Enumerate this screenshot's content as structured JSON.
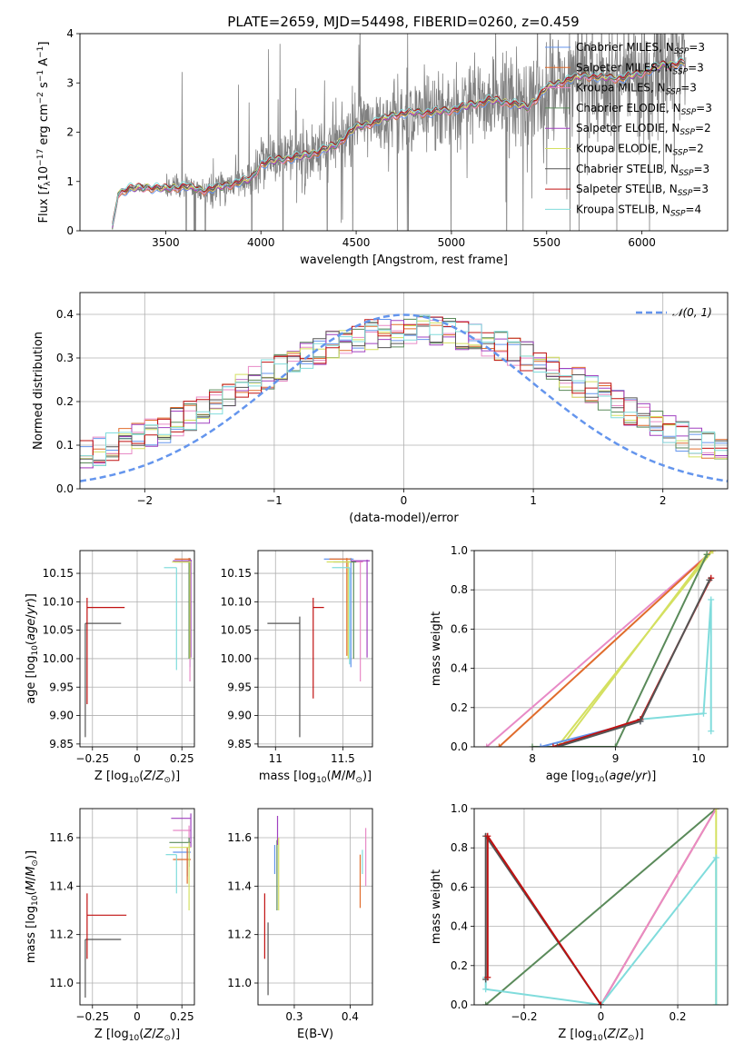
{
  "figure": {
    "title": "PLATE=2659, MJD=54498, FIBERID=0260, z=0.459"
  },
  "series_styles": [
    {
      "label": "Chabrier MILES, N$_{SSP}$=3",
      "label_main": "Chabrier MILES, N",
      "label_sub": "SSP",
      "label_tail": "=3",
      "color": "#6495ed"
    },
    {
      "label": "Salpeter MILES, N$_{SSP}$=3",
      "label_main": "Salpeter MILES, N",
      "label_sub": "SSP",
      "label_tail": "=3",
      "color": "#e06c2c"
    },
    {
      "label": "Kroupa MILES, N$_{SSP}$=3",
      "label_main": "Kroupa MILES, N",
      "label_sub": "SSP",
      "label_tail": "=3",
      "color": "#e88ac6"
    },
    {
      "label": "Chabrier ELODIE, N$_{SSP}$=3",
      "label_main": "Chabrier ELODIE, N",
      "label_sub": "SSP",
      "label_tail": "=3",
      "color": "#5a8a5a"
    },
    {
      "label": "Salpeter ELODIE, N$_{SSP}$=2",
      "label_main": "Salpeter ELODIE, N",
      "label_sub": "SSP",
      "label_tail": "=2",
      "color": "#a040c0"
    },
    {
      "label": "Kroupa ELODIE, N$_{SSP}$=2",
      "label_main": "Kroupa ELODIE, N",
      "label_sub": "SSP",
      "label_tail": "=2",
      "color": "#d4e060"
    },
    {
      "label": "Chabrier STELIB, N$_{SSP}$=3",
      "label_main": "Chabrier STELIB, N",
      "label_sub": "SSP",
      "label_tail": "=3",
      "color": "#555555"
    },
    {
      "label": "Salpeter STELIB, N$_{SSP}$=3",
      "label_main": "Salpeter STELIB, N",
      "label_sub": "SSP",
      "label_tail": "=3",
      "color": "#c01010"
    },
    {
      "label": "Kroupa STELIB, N$_{SSP}$=4",
      "label_main": "Kroupa STELIB, N",
      "label_sub": "SSP",
      "label_tail": "=4",
      "color": "#80dcdc"
    }
  ],
  "chart_data": [
    {
      "id": "spectrum",
      "type": "line",
      "title": "PLATE=2659, MJD=54498, FIBERID=0260, z=0.459",
      "xlabel": "wavelength [Angstrom, rest frame]",
      "ylabel": "Flux [f_λ10^-17 erg cm^-2 s^-1 A^-1]",
      "xlim": [
        3050,
        6450
      ],
      "ylim": [
        0,
        4
      ],
      "xticks": [
        3500,
        4000,
        4500,
        5000,
        5500,
        6000
      ],
      "yticks": [
        0,
        1,
        2,
        3,
        4
      ],
      "grid": false,
      "legend": "right",
      "data_color": "#808080",
      "data_start": 3220,
      "data_end": 6230,
      "model_anchors": {
        "x": [
          3220,
          3250,
          3300,
          3400,
          3500,
          3600,
          3700,
          3800,
          3900,
          3950,
          4000,
          4100,
          4200,
          4300,
          4400,
          4500,
          4600,
          4700,
          4800,
          4900,
          5000,
          5100,
          5200,
          5300,
          5400,
          5500,
          5600,
          5700,
          5800,
          5900,
          6000,
          6100,
          6200
        ],
        "y": [
          0.05,
          0.75,
          0.85,
          0.88,
          0.85,
          0.9,
          0.82,
          0.9,
          1.0,
          1.05,
          1.35,
          1.45,
          1.5,
          1.6,
          1.75,
          2.1,
          2.2,
          2.35,
          2.4,
          2.4,
          2.45,
          2.55,
          2.65,
          2.6,
          2.5,
          2.9,
          3.05,
          3.15,
          3.1,
          3.1,
          3.2,
          3.35,
          3.4
        ]
      }
    },
    {
      "id": "residuals",
      "type": "histogram",
      "xlabel": "(data-model)/error",
      "ylabel": "Normed distribution",
      "xlim": [
        -2.5,
        2.5
      ],
      "ylim": [
        0,
        0.45
      ],
      "xticks": [
        -2,
        -1,
        0,
        1,
        2
      ],
      "yticks": [
        0,
        0.1,
        0.2,
        0.3,
        0.4
      ],
      "grid": true,
      "legend": "top-right",
      "gaussian_label": "𝒩(0, 1)",
      "gaussian_color": "#6495ed",
      "bins": 50
    },
    {
      "id": "age_vs_Z",
      "type": "errorbar",
      "xlabel": "Z [log10(Z/Z⊙)]",
      "ylabel": "age [log10(age/yr)]",
      "xlim": [
        -0.32,
        0.32
      ],
      "ylim": [
        9.845,
        10.19
      ],
      "xticks": [
        -0.25,
        0.0,
        0.25
      ],
      "yticks": [
        9.85,
        9.9,
        9.95,
        10.0,
        10.05,
        10.1,
        10.15
      ],
      "grid": true,
      "points": [
        {
          "s": 0,
          "x": 0.295,
          "y": 10.175,
          "xl": 0.01,
          "xr": 0.005,
          "yl": 0.19,
          "yh": 0.002
        },
        {
          "s": 1,
          "x": 0.29,
          "y": 10.175,
          "xl": 0.08,
          "xr": 0.01,
          "yl": 0.17,
          "yh": 0.002
        },
        {
          "s": 2,
          "x": 0.295,
          "y": 10.17,
          "xl": 0.06,
          "xr": 0.005,
          "yl": 0.21,
          "yh": 0.002
        },
        {
          "s": 3,
          "x": 0.29,
          "y": 10.17,
          "xl": 0.08,
          "xr": 0.01,
          "yl": 0.17,
          "yh": 0.002
        },
        {
          "s": 4,
          "x": 0.3,
          "y": 10.172,
          "xl": 0.1,
          "xr": 0.005,
          "yl": 0.17,
          "yh": 0.002
        },
        {
          "s": 5,
          "x": 0.295,
          "y": 10.17,
          "xl": 0.1,
          "xr": 0.005,
          "yl": 0.17,
          "yh": 0.002
        },
        {
          "s": 6,
          "x": -0.29,
          "y": 10.062,
          "xl": 0.0,
          "xr": 0.2,
          "yl": 0.2,
          "yh": 0.0
        },
        {
          "s": 7,
          "x": -0.28,
          "y": 10.09,
          "xl": 0.0,
          "xr": 0.21,
          "yl": 0.17,
          "yh": 0.017
        },
        {
          "s": 8,
          "x": 0.22,
          "y": 10.16,
          "xl": 0.07,
          "xr": 0.0,
          "yl": 0.18,
          "yh": 0.0
        }
      ]
    },
    {
      "id": "age_vs_mass",
      "type": "errorbar",
      "xlabel": "mass [log10(M/M⊙)]",
      "ylabel": "",
      "xlim": [
        10.87,
        11.72
      ],
      "ylim": [
        9.845,
        10.19
      ],
      "xticks": [
        11.0,
        11.5
      ],
      "yticks": [
        9.85,
        9.9,
        9.95,
        10.0,
        10.05,
        10.1,
        10.15
      ],
      "grid": true,
      "points": [
        {
          "s": 0,
          "x": 11.56,
          "y": 10.175,
          "xl": 0.2,
          "xr": 0.02,
          "yl": 0.19,
          "yh": 0.002
        },
        {
          "s": 1,
          "x": 11.53,
          "y": 10.175,
          "xl": 0.13,
          "xr": 0.03,
          "yl": 0.17,
          "yh": 0.002
        },
        {
          "s": 2,
          "x": 11.63,
          "y": 10.17,
          "xl": 0.13,
          "xr": 0.02,
          "yl": 0.21,
          "yh": 0.002
        },
        {
          "s": 3,
          "x": 11.58,
          "y": 10.17,
          "xl": 0.15,
          "xr": 0.02,
          "yl": 0.17,
          "yh": 0.002
        },
        {
          "s": 4,
          "x": 11.68,
          "y": 10.172,
          "xl": 0.12,
          "xr": 0.02,
          "yl": 0.17,
          "yh": 0.002
        },
        {
          "s": 5,
          "x": 11.54,
          "y": 10.17,
          "xl": 0.16,
          "xr": 0.02,
          "yl": 0.17,
          "yh": 0.002
        },
        {
          "s": 6,
          "x": 11.18,
          "y": 10.062,
          "xl": 0.24,
          "xr": 0.0,
          "yl": 0.2,
          "yh": 0.012
        },
        {
          "s": 7,
          "x": 11.28,
          "y": 10.09,
          "xl": 0.0,
          "xr": 0.08,
          "yl": 0.16,
          "yh": 0.017
        },
        {
          "s": 8,
          "x": 11.55,
          "y": 10.16,
          "xl": 0.13,
          "xr": 0.0,
          "yl": 0.17,
          "yh": 0.0
        }
      ]
    },
    {
      "id": "weight_vs_age",
      "type": "line",
      "xlabel": "age [log10(age/yr)]",
      "ylabel": "mass weight",
      "xlim": [
        7.3,
        10.35
      ],
      "ylim": [
        0,
        1.0
      ],
      "xticks": [
        8,
        9,
        10
      ],
      "yticks": [
        0,
        0.2,
        0.4,
        0.6,
        0.8,
        1.0
      ],
      "grid": true,
      "series": [
        {
          "s": 2,
          "x": [
            7.45,
            10.17
          ],
          "y": [
            0.0,
            1.0
          ]
        },
        {
          "s": 1,
          "x": [
            7.6,
            10.17
          ],
          "y": [
            0.0,
            1.0
          ]
        },
        {
          "s": 5,
          "x": [
            8.3,
            10.17
          ],
          "y": [
            0.0,
            1.0
          ]
        },
        {
          "s": 5,
          "x": [
            8.35,
            10.1
          ],
          "y": [
            0.0,
            0.98
          ]
        },
        {
          "s": 3,
          "x": [
            9.0,
            10.1
          ],
          "y": [
            0.0,
            0.98
          ]
        },
        {
          "s": 3,
          "x": [
            8.0,
            9.0
          ],
          "y": [
            0.0,
            0.0
          ]
        },
        {
          "s": 0,
          "x": [
            8.1,
            9.3
          ],
          "y": [
            0.0,
            0.13
          ]
        },
        {
          "s": 8,
          "x": [
            9.3,
            10.06,
            10.15,
            10.15
          ],
          "y": [
            0.14,
            0.17,
            0.75,
            0.08
          ]
        },
        {
          "s": 7,
          "x": [
            8.25,
            9.3,
            10.15
          ],
          "y": [
            0.0,
            0.14,
            0.86
          ]
        },
        {
          "s": 6,
          "x": [
            8.3,
            9.3,
            10.13
          ],
          "y": [
            0.0,
            0.13,
            0.85
          ]
        }
      ]
    },
    {
      "id": "mass_vs_Z",
      "type": "errorbar",
      "xlabel": "Z [log10(Z/Z⊙)]",
      "ylabel": "mass [log10(M/M⊙)]",
      "xlim": [
        -0.32,
        0.32
      ],
      "ylim": [
        10.91,
        11.72
      ],
      "xticks": [
        -0.25,
        0.0,
        0.25
      ],
      "yticks": [
        11.0,
        11.2,
        11.4,
        11.6
      ],
      "grid": true,
      "points": [
        {
          "s": 0,
          "x": 0.28,
          "y": 11.54,
          "xl": 0.08,
          "xr": 0.02,
          "yl": 0.1,
          "yh": 0.02
        },
        {
          "s": 1,
          "x": 0.28,
          "y": 11.51,
          "xl": 0.08,
          "xr": 0.02,
          "yl": 0.1,
          "yh": 0.05
        },
        {
          "s": 2,
          "x": 0.29,
          "y": 11.63,
          "xl": 0.09,
          "xr": 0.01,
          "yl": 0.1,
          "yh": 0.02
        },
        {
          "s": 3,
          "x": 0.29,
          "y": 11.58,
          "xl": 0.11,
          "xr": 0.01,
          "yl": 0.1,
          "yh": 0.02
        },
        {
          "s": 4,
          "x": 0.3,
          "y": 11.68,
          "xl": 0.11,
          "xr": 0.0,
          "yl": 0.12,
          "yh": 0.02
        },
        {
          "s": 5,
          "x": 0.29,
          "y": 11.56,
          "xl": 0.11,
          "xr": 0.01,
          "yl": 0.26,
          "yh": 0.02
        },
        {
          "s": 6,
          "x": -0.29,
          "y": 11.18,
          "xl": 0.0,
          "xr": 0.2,
          "yl": 0.24,
          "yh": 0.0
        },
        {
          "s": 7,
          "x": -0.28,
          "y": 11.28,
          "xl": 0.0,
          "xr": 0.22,
          "yl": 0.18,
          "yh": 0.09
        },
        {
          "s": 8,
          "x": 0.22,
          "y": 11.53,
          "xl": 0.06,
          "xr": 0.0,
          "yl": 0.16,
          "yh": 0.0
        }
      ]
    },
    {
      "id": "mass_vs_EBV",
      "type": "errorbar",
      "xlabel": "E(B-V)",
      "ylabel": "",
      "xlim": [
        0.235,
        0.44
      ],
      "ylim": [
        10.91,
        11.72
      ],
      "xticks": [
        0.3,
        0.4
      ],
      "yticks": [
        11.0,
        11.2,
        11.4,
        11.6
      ],
      "grid": true,
      "points": [
        {
          "s": 0,
          "x": 0.265,
          "y": 11.55,
          "xl": 0.0,
          "xr": 0.0,
          "yl": 0.1,
          "yh": 0.02
        },
        {
          "s": 1,
          "x": 0.418,
          "y": 11.51,
          "xl": 0.0,
          "xr": 0.0,
          "yl": 0.2,
          "yh": 0.02
        },
        {
          "s": 2,
          "x": 0.428,
          "y": 11.64,
          "xl": 0.0,
          "xr": 0.0,
          "yl": 0.24,
          "yh": 0.0
        },
        {
          "s": 3,
          "x": 0.269,
          "y": 11.57,
          "xl": 0.0,
          "xr": 0.0,
          "yl": 0.27,
          "yh": 0.02
        },
        {
          "s": 4,
          "x": 0.27,
          "y": 11.69,
          "xl": 0.0,
          "xr": 0.0,
          "yl": 0.12,
          "yh": 0.0
        },
        {
          "s": 5,
          "x": 0.272,
          "y": 11.6,
          "xl": 0.0,
          "xr": 0.0,
          "yl": 0.3,
          "yh": 0.0
        },
        {
          "s": 6,
          "x": 0.253,
          "y": 11.25,
          "xl": 0.0,
          "xr": 0.0,
          "yl": 0.3,
          "yh": 0.0
        },
        {
          "s": 7,
          "x": 0.247,
          "y": 11.37,
          "xl": 0.0,
          "xr": 0.0,
          "yl": 0.27,
          "yh": 0.0
        },
        {
          "s": 8,
          "x": 0.422,
          "y": 11.55,
          "xl": 0.0,
          "xr": 0.0,
          "yl": 0.1,
          "yh": 0.0
        }
      ]
    },
    {
      "id": "weight_vs_Z",
      "type": "line",
      "xlabel": "Z [log10(Z/Z⊙)]",
      "ylabel": "mass weight",
      "xlim": [
        -0.33,
        0.33
      ],
      "ylim": [
        0,
        1.0
      ],
      "xticks": [
        -0.2,
        0.0,
        0.2
      ],
      "yticks": [
        0,
        0.2,
        0.4,
        0.6,
        0.8,
        1.0
      ],
      "grid": true,
      "series": [
        {
          "s": 3,
          "x": [
            -0.3,
            0.3
          ],
          "y": [
            0.0,
            1.0
          ]
        },
        {
          "s": 1,
          "x": [
            0.0,
            0.3
          ],
          "y": [
            0.0,
            1.0
          ]
        },
        {
          "s": 2,
          "x": [
            0.0,
            0.3
          ],
          "y": [
            0.0,
            1.0
          ]
        },
        {
          "s": 5,
          "x": [
            0.3,
            0.3
          ],
          "y": [
            0.0,
            1.0
          ]
        },
        {
          "s": 8,
          "x": [
            -0.3,
            -0.3,
            0.0,
            0.3,
            0.3
          ],
          "y": [
            0.14,
            0.08,
            0.0,
            0.75,
            0.0
          ]
        },
        {
          "s": 6,
          "x": [
            -0.3,
            -0.3,
            0.0
          ],
          "y": [
            0.13,
            0.86,
            0.0
          ]
        },
        {
          "s": 7,
          "x": [
            -0.295,
            -0.295,
            0.0
          ],
          "y": [
            0.14,
            0.86,
            0.0
          ]
        }
      ]
    }
  ]
}
